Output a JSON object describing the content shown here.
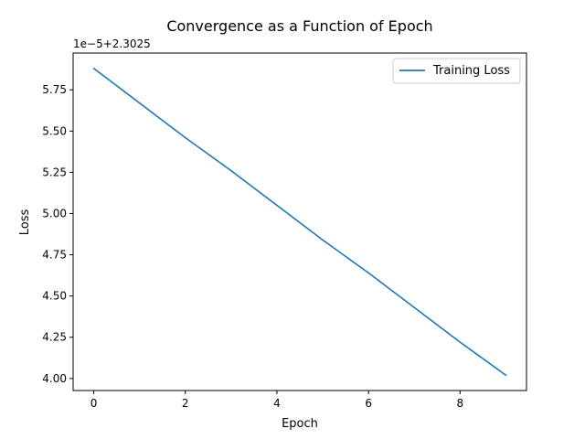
{
  "chart_data": {
    "type": "line",
    "title": "Convergence as a Function of Epoch",
    "xlabel": "Epoch",
    "ylabel": "Loss",
    "y_offset_label": "1e−5+2.3025",
    "x": [
      0,
      1,
      2,
      3,
      4,
      5,
      6,
      7,
      8,
      9
    ],
    "series": [
      {
        "name": "Training Loss",
        "color": "#1f77b4",
        "values": [
          5.88,
          5.67,
          5.46,
          5.26,
          5.05,
          4.84,
          4.64,
          4.43,
          4.22,
          4.02
        ]
      }
    ],
    "xlim": [
      -0.45,
      9.45
    ],
    "ylim": [
      3.927,
      5.973
    ],
    "xticks": [
      0,
      2,
      4,
      6,
      8
    ],
    "xtick_labels": [
      "0",
      "2",
      "4",
      "6",
      "8"
    ],
    "yticks": [
      4.0,
      4.25,
      4.5,
      4.75,
      5.0,
      5.25,
      5.5,
      5.75
    ],
    "ytick_labels": [
      "4.00",
      "4.25",
      "4.50",
      "4.75",
      "5.00",
      "5.25",
      "5.50",
      "5.75"
    ],
    "grid": false,
    "legend_position": "top-right"
  }
}
